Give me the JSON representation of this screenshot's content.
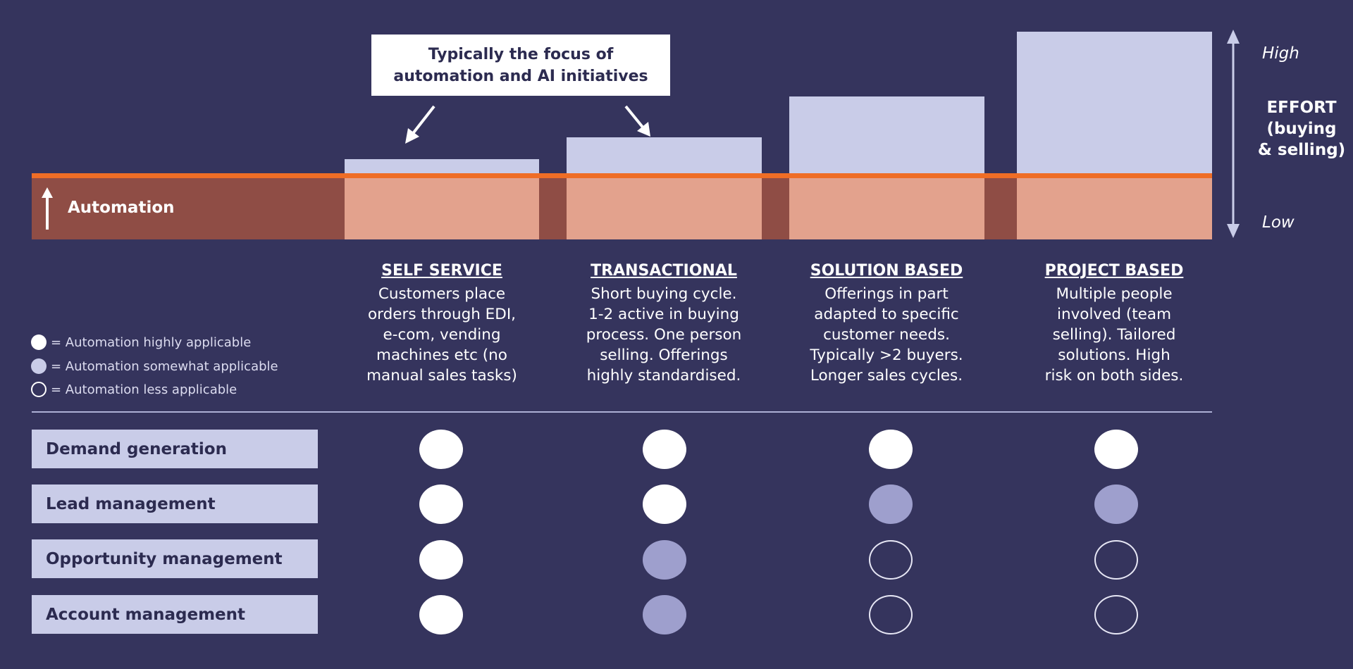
{
  "callout": {
    "text": "Typically the focus of\nautomation and AI initiatives"
  },
  "automation_label": "Automation",
  "effort_axis": {
    "high": "High",
    "low": "Low",
    "title": "EFFORT\n(buying\n& selling)"
  },
  "categories": [
    {
      "title": "SELF SERVICE",
      "description": "Customers place\norders through EDI,\ne-com, vending\nmachines etc (no\nmanual sales tasks)"
    },
    {
      "title": "TRANSACTIONAL",
      "description": "Short buying cycle.\n1-2 active in buying\nprocess. One person\nselling. Offerings\nhighly standardised."
    },
    {
      "title": "SOLUTION BASED",
      "description": "Offerings in part\nadapted to specific\ncustomer needs.\nTypically >2 buyers.\nLonger sales cycles."
    },
    {
      "title": "PROJECT BASED",
      "description": "Multiple people\ninvolved (team\nselling). Tailored\nsolutions. High\nrisk on both sides."
    }
  ],
  "legend": [
    {
      "level": "high",
      "text": "= Automation highly applicable"
    },
    {
      "level": "somewhat",
      "text": "= Automation somewhat applicable"
    },
    {
      "level": "less",
      "text": "= Automation less applicable"
    }
  ],
  "rows": [
    {
      "label": "Demand generation",
      "levels": [
        "high",
        "high",
        "high",
        "high"
      ]
    },
    {
      "label": "Lead management",
      "levels": [
        "high",
        "high",
        "somewhat",
        "somewhat"
      ]
    },
    {
      "label": "Opportunity management",
      "levels": [
        "high",
        "somewhat",
        "less",
        "less"
      ]
    },
    {
      "label": "Account management",
      "levels": [
        "high",
        "somewhat",
        "less",
        "less"
      ]
    }
  ],
  "colors": {
    "background": "#35345d",
    "effort_bar": "#c9cce8",
    "automation_dark": "#8f4d45",
    "automation_light": "#e3a28d",
    "threshold_line": "#ef6d26",
    "dot_high": "#ffffff",
    "dot_somewhat": "#9e9fcd"
  }
}
